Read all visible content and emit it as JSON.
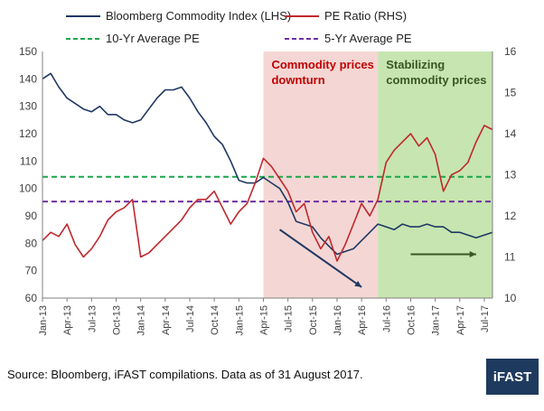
{
  "chart_data": {
    "type": "line",
    "legend": [
      {
        "label": "Bloomberg Commodity Index (LHS)",
        "color": "#1f3864",
        "style": "solid"
      },
      {
        "label": "PE Ratio (RHS)",
        "color": "#c0282d",
        "style": "solid"
      },
      {
        "label": "10-Yr Average PE",
        "color": "#1aa64a",
        "style": "dashed"
      },
      {
        "label": "5-Yr Average PE",
        "color": "#7030a0",
        "style": "dashed"
      }
    ],
    "legend_placement": "top",
    "y_left": {
      "ticks": [
        "150",
        "140",
        "130",
        "120",
        "110",
        "100",
        "90",
        "80",
        "70",
        "60"
      ],
      "ylim": [
        60,
        150
      ]
    },
    "y_right": {
      "ticks": [
        "16",
        "15",
        "14",
        "13",
        "12",
        "11",
        "10"
      ],
      "ylim": [
        10,
        16
      ]
    },
    "x_ticks": [
      "Jan-13",
      "Apr-13",
      "Jul-13",
      "Oct-13",
      "Jan-14",
      "Apr-14",
      "Jul-14",
      "Oct-14",
      "Jan-15",
      "Apr-15",
      "Jul-15",
      "Oct-15",
      "Jan-16",
      "Apr-16",
      "Jul-16",
      "Oct-16",
      "Jan-17",
      "Apr-17",
      "Jul-17"
    ],
    "x_range": [
      "2013-01",
      "2017-08"
    ],
    "grid": false,
    "series": [
      {
        "name": "Bloomberg Commodity Index (LHS)",
        "axis": "left",
        "x": [
          "2013-01",
          "2013-02",
          "2013-03",
          "2013-04",
          "2013-05",
          "2013-06",
          "2013-07",
          "2013-08",
          "2013-09",
          "2013-10",
          "2013-11",
          "2013-12",
          "2014-01",
          "2014-02",
          "2014-03",
          "2014-04",
          "2014-05",
          "2014-06",
          "2014-07",
          "2014-08",
          "2014-09",
          "2014-10",
          "2014-11",
          "2014-12",
          "2015-01",
          "2015-02",
          "2015-03",
          "2015-04",
          "2015-05",
          "2015-06",
          "2015-07",
          "2015-08",
          "2015-09",
          "2015-10",
          "2015-11",
          "2015-12",
          "2016-01",
          "2016-02",
          "2016-03",
          "2016-04",
          "2016-05",
          "2016-06",
          "2016-07",
          "2016-08",
          "2016-09",
          "2016-10",
          "2016-11",
          "2016-12",
          "2017-01",
          "2017-02",
          "2017-03",
          "2017-04",
          "2017-05",
          "2017-06",
          "2017-07",
          "2017-08"
        ],
        "y": [
          140,
          142,
          137,
          133,
          131,
          129,
          128,
          130,
          127,
          127,
          125,
          124,
          125,
          129,
          133,
          136,
          136,
          137,
          133,
          128,
          124,
          119,
          116,
          110,
          103,
          102,
          102,
          104,
          102,
          100,
          95,
          88,
          87,
          86,
          82,
          79,
          76,
          77,
          78,
          81,
          84,
          87,
          86,
          85,
          87,
          86,
          86,
          87,
          86,
          86,
          84,
          84,
          83,
          82,
          83,
          84
        ]
      },
      {
        "name": "PE Ratio (RHS)",
        "axis": "right",
        "x": [
          "2013-01",
          "2013-02",
          "2013-03",
          "2013-04",
          "2013-05",
          "2013-06",
          "2013-07",
          "2013-08",
          "2013-09",
          "2013-10",
          "2013-11",
          "2013-12",
          "2014-01",
          "2014-02",
          "2014-03",
          "2014-04",
          "2014-05",
          "2014-06",
          "2014-07",
          "2014-08",
          "2014-09",
          "2014-10",
          "2014-11",
          "2014-12",
          "2015-01",
          "2015-02",
          "2015-03",
          "2015-04",
          "2015-05",
          "2015-06",
          "2015-07",
          "2015-08",
          "2015-09",
          "2015-10",
          "2015-11",
          "2015-12",
          "2016-01",
          "2016-02",
          "2016-03",
          "2016-04",
          "2016-05",
          "2016-06",
          "2016-07",
          "2016-08",
          "2016-09",
          "2016-10",
          "2016-11",
          "2016-12",
          "2017-01",
          "2017-02",
          "2017-03",
          "2017-04",
          "2017-05",
          "2017-06",
          "2017-07",
          "2017-08"
        ],
        "y": [
          11.4,
          11.6,
          11.5,
          11.8,
          11.3,
          11.0,
          11.2,
          11.5,
          11.9,
          12.1,
          12.2,
          12.4,
          11.0,
          11.1,
          11.3,
          11.5,
          11.7,
          11.9,
          12.2,
          12.4,
          12.4,
          12.6,
          12.2,
          11.8,
          12.1,
          12.3,
          12.8,
          13.4,
          13.2,
          12.9,
          12.6,
          12.1,
          12.3,
          11.6,
          11.2,
          11.5,
          10.9,
          11.3,
          11.8,
          12.3,
          12.0,
          12.4,
          13.3,
          13.6,
          13.8,
          14.0,
          13.7,
          13.9,
          13.5,
          12.6,
          13.0,
          13.1,
          13.3,
          13.8,
          14.2,
          14.1
        ]
      }
    ],
    "reference_lines": [
      {
        "name": "10-Yr Average PE",
        "axis": "right",
        "value": 12.95
      },
      {
        "name": "5-Yr Average PE",
        "axis": "right",
        "value": 12.35
      }
    ],
    "regions": [
      {
        "label": "Commodity prices downturn",
        "from": "2015-04",
        "to": "2016-06",
        "color": "#f4d7d4"
      },
      {
        "label": "Stabilizing commodity prices",
        "from": "2016-06",
        "to": "2017-08",
        "color": "#c7e5b0"
      }
    ],
    "arrows": [
      {
        "color": "#1f3864",
        "from": {
          "x": "2015-06",
          "y": 85
        },
        "to": {
          "x": "2016-04",
          "y": 64
        }
      },
      {
        "color": "#385723",
        "from": {
          "x": "2016-10",
          "y": 76
        },
        "to": {
          "x": "2017-06",
          "y": 76
        }
      }
    ]
  },
  "footer": {
    "source": "Source: Bloomberg, iFAST compilations. Data as of 31 August 2017.",
    "logo": "iFAST"
  },
  "colors": {
    "footer_bg": "#1f3a5f",
    "text": "#111111"
  }
}
